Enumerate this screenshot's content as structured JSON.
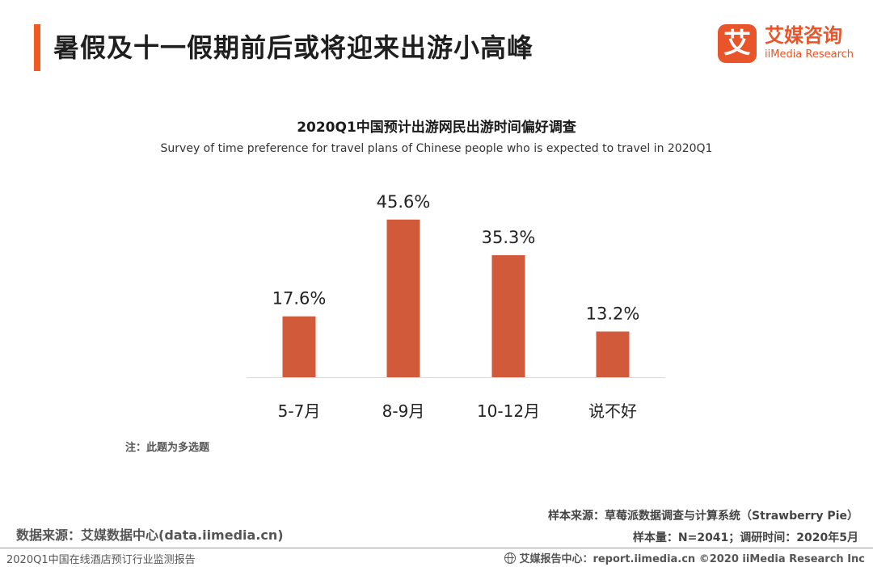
{
  "header": {
    "title": "暑假及十一假期前后或将迎来出游小高峰",
    "accent_color": "#f15a22"
  },
  "logo": {
    "mark": "艾",
    "name_cn": "艾媒咨询",
    "name_en": "iiMedia Research",
    "color": "#e8552a"
  },
  "chart_data": {
    "type": "bar",
    "title": "2020Q1中国预计出游网民出游时间偏好调查",
    "subtitle": "Survey of time preference for travel plans of Chinese people who is expected to travel in 2020Q1",
    "categories": [
      "5-7月",
      "8-9月",
      "10-12月",
      "说不好"
    ],
    "values": [
      17.6,
      45.6,
      35.3,
      13.2
    ],
    "value_labels": [
      "17.6%",
      "45.6%",
      "35.3%",
      "13.2%"
    ],
    "unit": "%",
    "xlabel": "",
    "ylabel": "",
    "ylim": [
      0,
      50
    ],
    "grid": false,
    "legend": "none",
    "bar_color": "#d15a3a"
  },
  "note": "注：此题为多选题",
  "sources": {
    "left": "数据来源：艾媒数据中心(data.iimedia.cn)",
    "sample_source": "样本来源：草莓派数据调查与计算系统（Strawberry Pie）",
    "sample_size": "样本量：N=2041；调研时间：2020年5月"
  },
  "footer": {
    "left": "2020Q1中国在线酒店预订行业监测报告",
    "right": "艾媒报告中心：report.iimedia.cn ©2020 iiMedia Research Inc",
    "icon": "globe-icon"
  }
}
